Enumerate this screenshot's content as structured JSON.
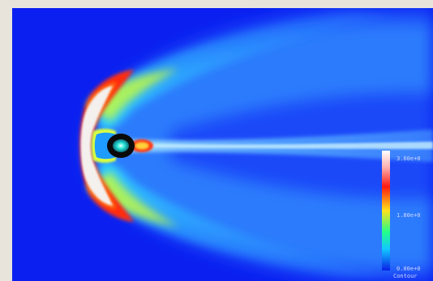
{
  "legend": {
    "max_label": "3.60e+0",
    "mid_label": "1.80e+0",
    "min_label": "0.00e+0",
    "title": "Contour"
  },
  "colors": {
    "background": "#0a1ff0",
    "planet": "#0a0a0a",
    "planet_core": "#25e0d0"
  }
}
